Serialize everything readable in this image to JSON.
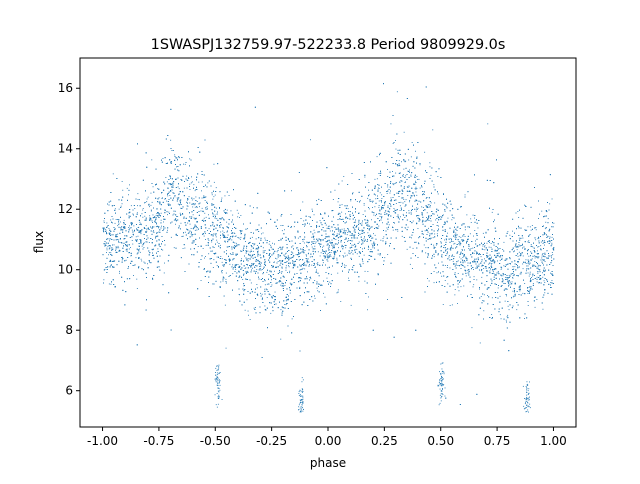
{
  "chart_data": {
    "type": "scatter",
    "title": "1SWASPJ132759.97-522233.8 Period 9809929.0s",
    "xlabel": "phase",
    "ylabel": "flux",
    "xlim": [
      -1.1,
      1.1
    ],
    "ylim": [
      4.8,
      17.0
    ],
    "xticks": [
      "-1.00",
      "-0.75",
      "-0.50",
      "-0.25",
      "0.00",
      "0.25",
      "0.50",
      "0.75",
      "1.00"
    ],
    "yticks": [
      "6",
      "8",
      "10",
      "12",
      "14",
      "16"
    ],
    "xtick_values": [
      -1.0,
      -0.75,
      -0.5,
      -0.25,
      0.0,
      0.25,
      0.5,
      0.75,
      1.0
    ],
    "ytick_values": [
      6,
      8,
      10,
      12,
      14,
      16
    ],
    "grid": false,
    "series": [
      {
        "color": "#1f77b4",
        "marker_size": "tiny",
        "profile": {
          "phase": [
            -1.0,
            -0.95,
            -0.9,
            -0.85,
            -0.8,
            -0.75,
            -0.72,
            -0.7,
            -0.65,
            -0.6,
            -0.55,
            -0.5,
            -0.45,
            -0.4,
            -0.35,
            -0.3,
            -0.25,
            -0.2,
            -0.15,
            -0.1,
            -0.05,
            0.0,
            0.05,
            0.1,
            0.15,
            0.2,
            0.25,
            0.28,
            0.3,
            0.35,
            0.4,
            0.45,
            0.5,
            0.55,
            0.6,
            0.65,
            0.7,
            0.75,
            0.8,
            0.85,
            0.9,
            0.95,
            1.0
          ],
          "center_flux": [
            10.9,
            11.0,
            11.1,
            11.0,
            11.2,
            11.6,
            12.0,
            12.8,
            12.3,
            12.0,
            11.6,
            11.2,
            10.8,
            10.5,
            10.3,
            10.1,
            10.0,
            10.1,
            10.2,
            10.4,
            10.6,
            10.9,
            11.0,
            11.1,
            11.2,
            11.5,
            11.8,
            12.4,
            12.8,
            12.3,
            12.0,
            11.6,
            11.2,
            10.8,
            10.6,
            10.4,
            10.2,
            10.0,
            10.0,
            10.1,
            10.2,
            10.4,
            10.6
          ],
          "spread": [
            0.9,
            0.9,
            0.9,
            1.0,
            1.0,
            1.1,
            1.2,
            1.2,
            1.2,
            1.2,
            1.1,
            1.1,
            1.0,
            1.0,
            1.0,
            1.0,
            1.0,
            1.0,
            1.0,
            1.0,
            1.0,
            0.9,
            0.9,
            1.0,
            1.0,
            1.1,
            1.2,
            1.2,
            1.2,
            1.2,
            1.2,
            1.1,
            1.1,
            1.0,
            1.0,
            1.0,
            1.0,
            1.0,
            1.0,
            1.0,
            1.0,
            1.0,
            1.0
          ]
        },
        "low_clusters": [
          {
            "phase": -0.49,
            "flux": 6.2
          },
          {
            "phase": -0.12,
            "flux": 5.6
          },
          {
            "phase": 0.5,
            "flux": 6.2
          },
          {
            "phase": 0.88,
            "flux": 5.6
          }
        ],
        "flux_min": 5.3,
        "flux_max": 16.4
      }
    ]
  }
}
